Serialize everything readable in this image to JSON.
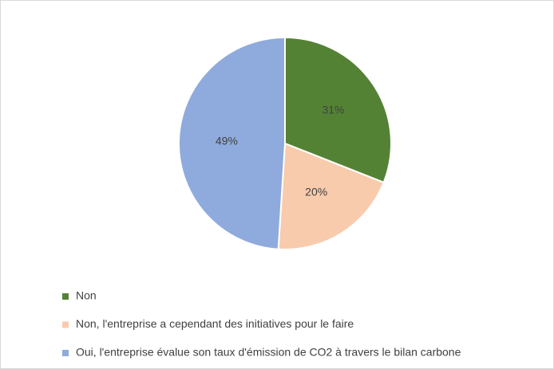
{
  "chart_data": {
    "type": "pie",
    "categories": [
      "Non",
      "Non, l'entreprise a cependant des initiatives pour le faire",
      "Oui, l'entreprise évalue son taux d'émission de CO2 à travers le bilan carbone"
    ],
    "values": [
      31,
      20,
      49
    ],
    "value_labels": [
      "31%",
      "20%",
      "49%"
    ],
    "colors": [
      "#548235",
      "#f8cbad",
      "#8faadc"
    ],
    "legend": "bottom-left"
  }
}
